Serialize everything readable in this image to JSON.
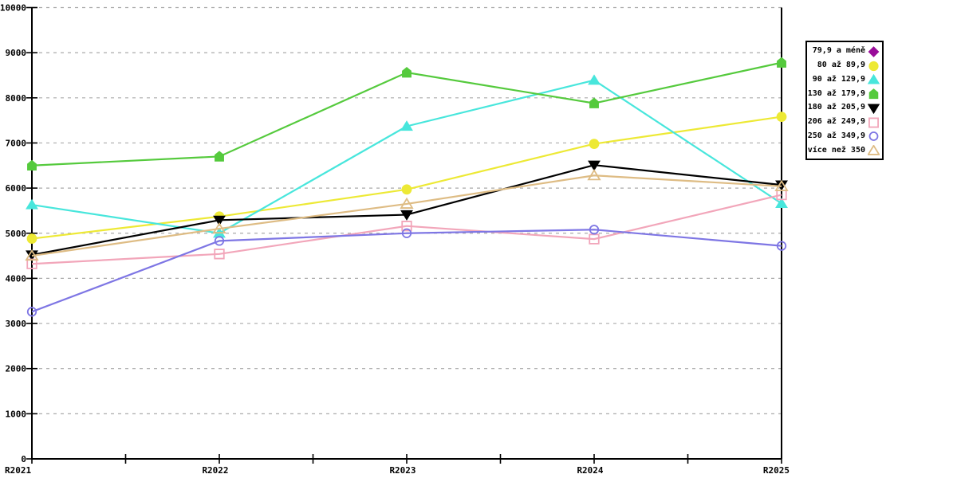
{
  "chart_data": {
    "type": "line",
    "title": "",
    "xlabel": "",
    "ylabel": "",
    "categories": [
      "R2021",
      "R2022",
      "R2023",
      "R2024",
      "R2025"
    ],
    "y_ticks": [
      0,
      1000,
      2000,
      3000,
      4000,
      5000,
      6000,
      7000,
      8000,
      9000,
      10000
    ],
    "ylim": [
      0,
      10000
    ],
    "y_tick_step": 1000,
    "grid": "horizontal-dashed",
    "legend_position": "right",
    "series": [
      {
        "name": "79,9 a méně",
        "color": "#990C99",
        "marker": "diamond",
        "filled": true,
        "values": [
          null,
          null,
          null,
          null,
          null
        ]
      },
      {
        "name": "80 až 89,9",
        "color": "#EDE935",
        "marker": "circle",
        "filled": true,
        "values": [
          4880,
          5370,
          5970,
          6980,
          7580
        ]
      },
      {
        "name": "90 až 129,9",
        "color": "#48E6DC",
        "marker": "triangle",
        "filled": true,
        "values": [
          5630,
          5000,
          7370,
          8390,
          5660
        ]
      },
      {
        "name": "130 až 179,9",
        "color": "#55CA3D",
        "marker": "home",
        "filled": true,
        "values": [
          6500,
          6700,
          8560,
          7880,
          8780
        ]
      },
      {
        "name": "180 až 205,9",
        "color": "#000000",
        "marker": "invtriangle",
        "filled": true,
        "values": [
          4520,
          5290,
          5410,
          6510,
          6070
        ]
      },
      {
        "name": "206 až 249,9",
        "color": "#F2A6BA",
        "marker": "square",
        "filled": false,
        "values": [
          4320,
          4540,
          5160,
          4870,
          5850
        ]
      },
      {
        "name": "250 až 349,9",
        "color": "#7E76E4",
        "marker": "circle",
        "filled": false,
        "values": [
          3260,
          4830,
          5000,
          5080,
          4720
        ]
      },
      {
        "name": "více než 350",
        "color": "#DEBC84",
        "marker": "triangle",
        "filled": false,
        "values": [
          4500,
          5100,
          5650,
          6280,
          6040
        ]
      }
    ],
    "colors": {
      "grid": "#AAAAAA",
      "axis": "#000000",
      "background": "#FFFFFF",
      "legend_border": "#000000"
    }
  }
}
